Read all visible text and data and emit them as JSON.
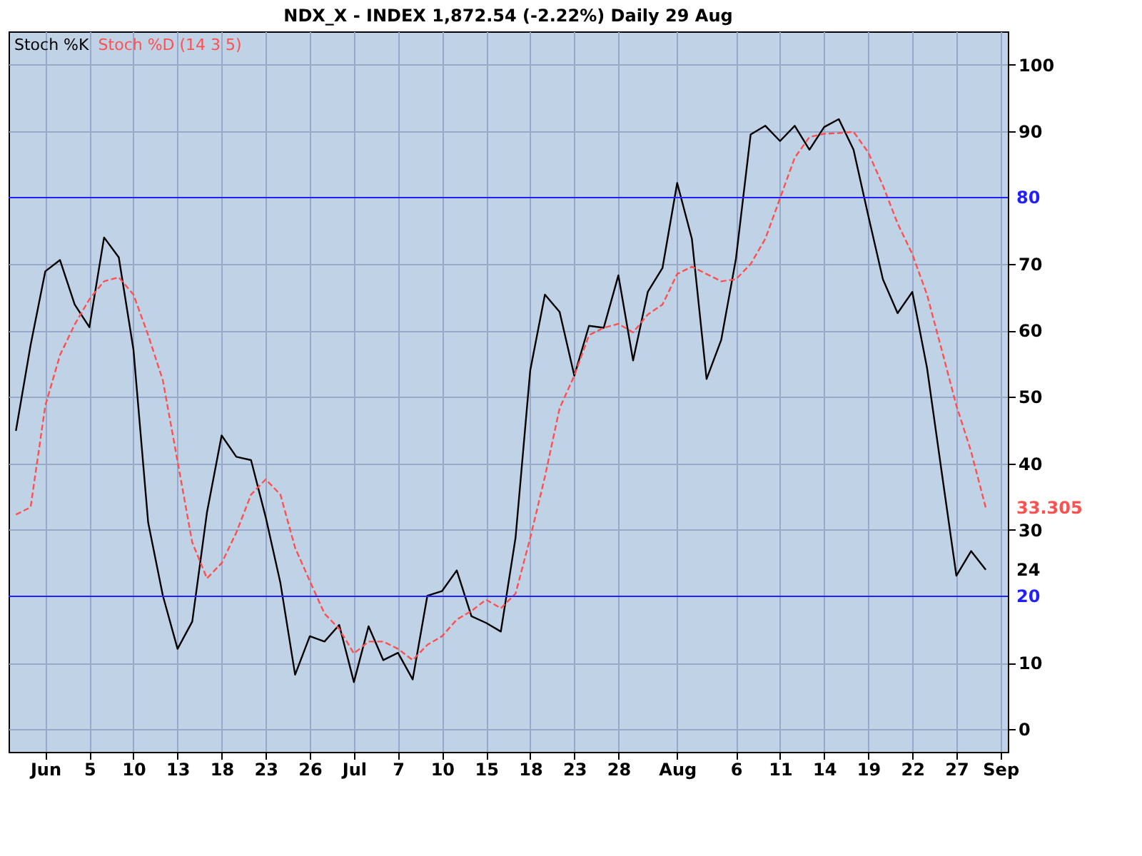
{
  "chart_data": {
    "type": "line",
    "title": "NDX_X - INDEX    1,872.54 (-2.22%)    Daily  29 Aug",
    "categories": [
      null,
      null,
      "Jun",
      null,
      null,
      "5",
      null,
      null,
      "10",
      null,
      null,
      "13",
      null,
      null,
      "18",
      null,
      null,
      "23",
      null,
      null,
      "26",
      null,
      null,
      "Jul",
      null,
      null,
      "7",
      null,
      null,
      "10",
      null,
      null,
      "15",
      null,
      null,
      "18",
      null,
      null,
      "23",
      null,
      null,
      "28",
      null,
      null,
      null,
      "Aug",
      null,
      null,
      null,
      "6",
      null,
      null,
      "11",
      null,
      null,
      "14",
      null,
      null,
      "19",
      null,
      null,
      "22",
      null,
      null,
      "27",
      null,
      null,
      "Sep"
    ],
    "series": [
      {
        "name": "Stoch %K",
        "color": "#000000",
        "line_style": "solid",
        "values": [
          44.9,
          57.8,
          68.9,
          70.6,
          63.9,
          60.5,
          74.0,
          71.0,
          57.1,
          31.1,
          20.1,
          12.1,
          16.2,
          32.6,
          44.2,
          41.0,
          40.5,
          31.9,
          22.0,
          8.2,
          14.0,
          13.2,
          15.7,
          7.1,
          15.5,
          10.4,
          11.5,
          7.5,
          20.1,
          20.8,
          23.9,
          17.0,
          16.0,
          14.7,
          28.8,
          54.0,
          65.4,
          62.8,
          53.2,
          60.7,
          60.4,
          68.3,
          55.5,
          65.8,
          69.4,
          82.2,
          73.8,
          52.7,
          58.6,
          70.8,
          89.5,
          90.8,
          88.5,
          90.8,
          87.2,
          90.6,
          91.8,
          87.2,
          77.3,
          67.7,
          62.6,
          65.8,
          54.4,
          38.7,
          23.1,
          26.8,
          24,
          null
        ],
        "value_labels": [
          null,
          null,
          null,
          null,
          null,
          null,
          null,
          null,
          null,
          null,
          null,
          null,
          null,
          null,
          null,
          null,
          null,
          null,
          null,
          null,
          null,
          null,
          null,
          null,
          null,
          null,
          null,
          null,
          null,
          null,
          null,
          null,
          null,
          null,
          null,
          null,
          null,
          null,
          null,
          null,
          null,
          null,
          null,
          null,
          null,
          null,
          null,
          null,
          null,
          null,
          null,
          null,
          null,
          null,
          null,
          null,
          null,
          null,
          null,
          null,
          null,
          null,
          null,
          null,
          null,
          null,
          "24",
          null
        ]
      },
      {
        "name": "Stoch %D (14 3 5)",
        "color": "#ff5050",
        "line_style": "dashed",
        "values": [
          32.3,
          33.4,
          48.7,
          56.3,
          60.9,
          64.7,
          67.4,
          68.0,
          65.4,
          59.3,
          52.5,
          40.3,
          28.1,
          22.7,
          25.0,
          29.6,
          35.3,
          37.6,
          35.3,
          27.3,
          22.3,
          17.4,
          15.1,
          11.4,
          13.2,
          13.2,
          12.1,
          10.4,
          12.7,
          14.0,
          16.5,
          17.8,
          19.5,
          18.2,
          20.4,
          28.8,
          38.0,
          48.3,
          53.2,
          59.3,
          60.4,
          61.0,
          59.7,
          62.4,
          63.9,
          68.5,
          69.6,
          68.5,
          67.4,
          67.7,
          70.0,
          73.8,
          79.9,
          86.0,
          89.1,
          89.6,
          89.7,
          89.9,
          86.8,
          81.8,
          76.1,
          71.5,
          65.4,
          57.1,
          48.7,
          41.8,
          33.305,
          null
        ],
        "value_labels": [
          null,
          null,
          null,
          null,
          null,
          null,
          null,
          null,
          null,
          null,
          null,
          null,
          null,
          null,
          null,
          null,
          null,
          null,
          null,
          null,
          null,
          null,
          null,
          null,
          null,
          null,
          null,
          null,
          null,
          null,
          null,
          null,
          null,
          null,
          null,
          null,
          null,
          null,
          null,
          null,
          null,
          null,
          null,
          null,
          null,
          null,
          null,
          null,
          null,
          null,
          null,
          null,
          null,
          null,
          null,
          null,
          null,
          null,
          null,
          null,
          null,
          null,
          null,
          null,
          null,
          null,
          "33.305",
          null
        ]
      }
    ],
    "ylim": [
      -3.4,
      105
    ],
    "yticks": [
      0,
      10,
      30,
      40,
      50,
      60,
      70,
      90,
      100
    ],
    "ref_lines": [
      {
        "axis": "y",
        "value": 80,
        "label": "80",
        "color": "#2020ff"
      },
      {
        "axis": "y",
        "value": 20,
        "label": "20",
        "color": "#2020ff"
      }
    ],
    "grid": true,
    "legend": "top left",
    "marker": "none"
  }
}
